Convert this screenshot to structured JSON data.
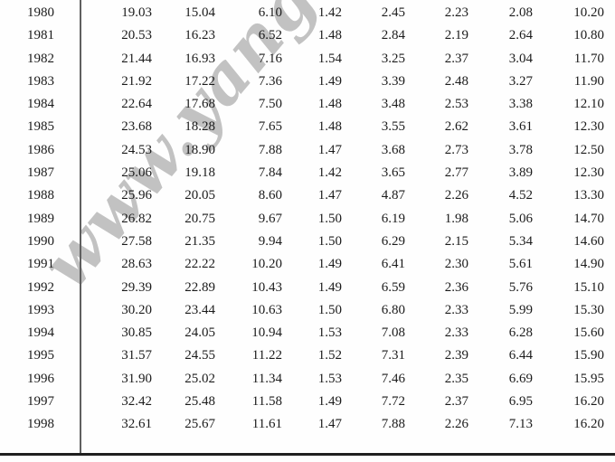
{
  "watermark": {
    "text": "www.yangt",
    "color": "#c2c2c2"
  },
  "colors": {
    "text": "#1b1b1b",
    "rule": "#5f5f5f",
    "bottom_border": "#1f1f1f",
    "watermark": "#c2c2c2",
    "page_bg": "#fefefe"
  },
  "table": {
    "rows": [
      [
        "1980",
        "19.03",
        "15.04",
        "6.10",
        "1.42",
        "2.45",
        "2.23",
        "2.08",
        "10.20"
      ],
      [
        "1981",
        "20.53",
        "16.23",
        "6.52",
        "1.48",
        "2.84",
        "2.19",
        "2.64",
        "10.80"
      ],
      [
        "1982",
        "21.44",
        "16.93",
        "7.16",
        "1.54",
        "3.25",
        "2.37",
        "3.04",
        "11.70"
      ],
      [
        "1983",
        "21.92",
        "17.22",
        "7.36",
        "1.49",
        "3.39",
        "2.48",
        "3.27",
        "11.90"
      ],
      [
        "1984",
        "22.64",
        "17.68",
        "7.50",
        "1.48",
        "3.48",
        "2.53",
        "3.38",
        "12.10"
      ],
      [
        "1985",
        "23.68",
        "18.28",
        "7.65",
        "1.48",
        "3.55",
        "2.62",
        "3.61",
        "12.30"
      ],
      [
        "1986",
        "24.53",
        "18.90",
        "7.88",
        "1.47",
        "3.68",
        "2.73",
        "3.78",
        "12.50"
      ],
      [
        "1987",
        "25.06",
        "19.18",
        "7.84",
        "1.42",
        "3.65",
        "2.77",
        "3.89",
        "12.30"
      ],
      [
        "1988",
        "25.96",
        "20.05",
        "8.60",
        "1.47",
        "4.87",
        "2.26",
        "4.52",
        "13.30"
      ],
      [
        "1989",
        "26.82",
        "20.75",
        "9.67",
        "1.50",
        "6.19",
        "1.98",
        "5.06",
        "14.70"
      ],
      [
        "1990",
        "27.58",
        "21.35",
        "9.94",
        "1.50",
        "6.29",
        "2.15",
        "5.34",
        "14.60"
      ],
      [
        "1991",
        "28.63",
        "22.22",
        "10.20",
        "1.49",
        "6.41",
        "2.30",
        "5.61",
        "14.90"
      ],
      [
        "1992",
        "29.39",
        "22.89",
        "10.43",
        "1.49",
        "6.59",
        "2.36",
        "5.76",
        "15.10"
      ],
      [
        "1993",
        "30.20",
        "23.44",
        "10.63",
        "1.50",
        "6.80",
        "2.33",
        "5.99",
        "15.30"
      ],
      [
        "1994",
        "30.85",
        "24.05",
        "10.94",
        "1.53",
        "7.08",
        "2.33",
        "6.28",
        "15.60"
      ],
      [
        "1995",
        "31.57",
        "24.55",
        "11.22",
        "1.52",
        "7.31",
        "2.39",
        "6.44",
        "15.90"
      ],
      [
        "1996",
        "31.90",
        "25.02",
        "11.34",
        "1.53",
        "7.46",
        "2.35",
        "6.69",
        "15.95"
      ],
      [
        "1997",
        "32.42",
        "25.48",
        "11.58",
        "1.49",
        "7.72",
        "2.37",
        "6.95",
        "16.20"
      ],
      [
        "1998",
        "32.61",
        "25.67",
        "11.61",
        "1.47",
        "7.88",
        "2.26",
        "7.13",
        "16.20"
      ]
    ]
  }
}
